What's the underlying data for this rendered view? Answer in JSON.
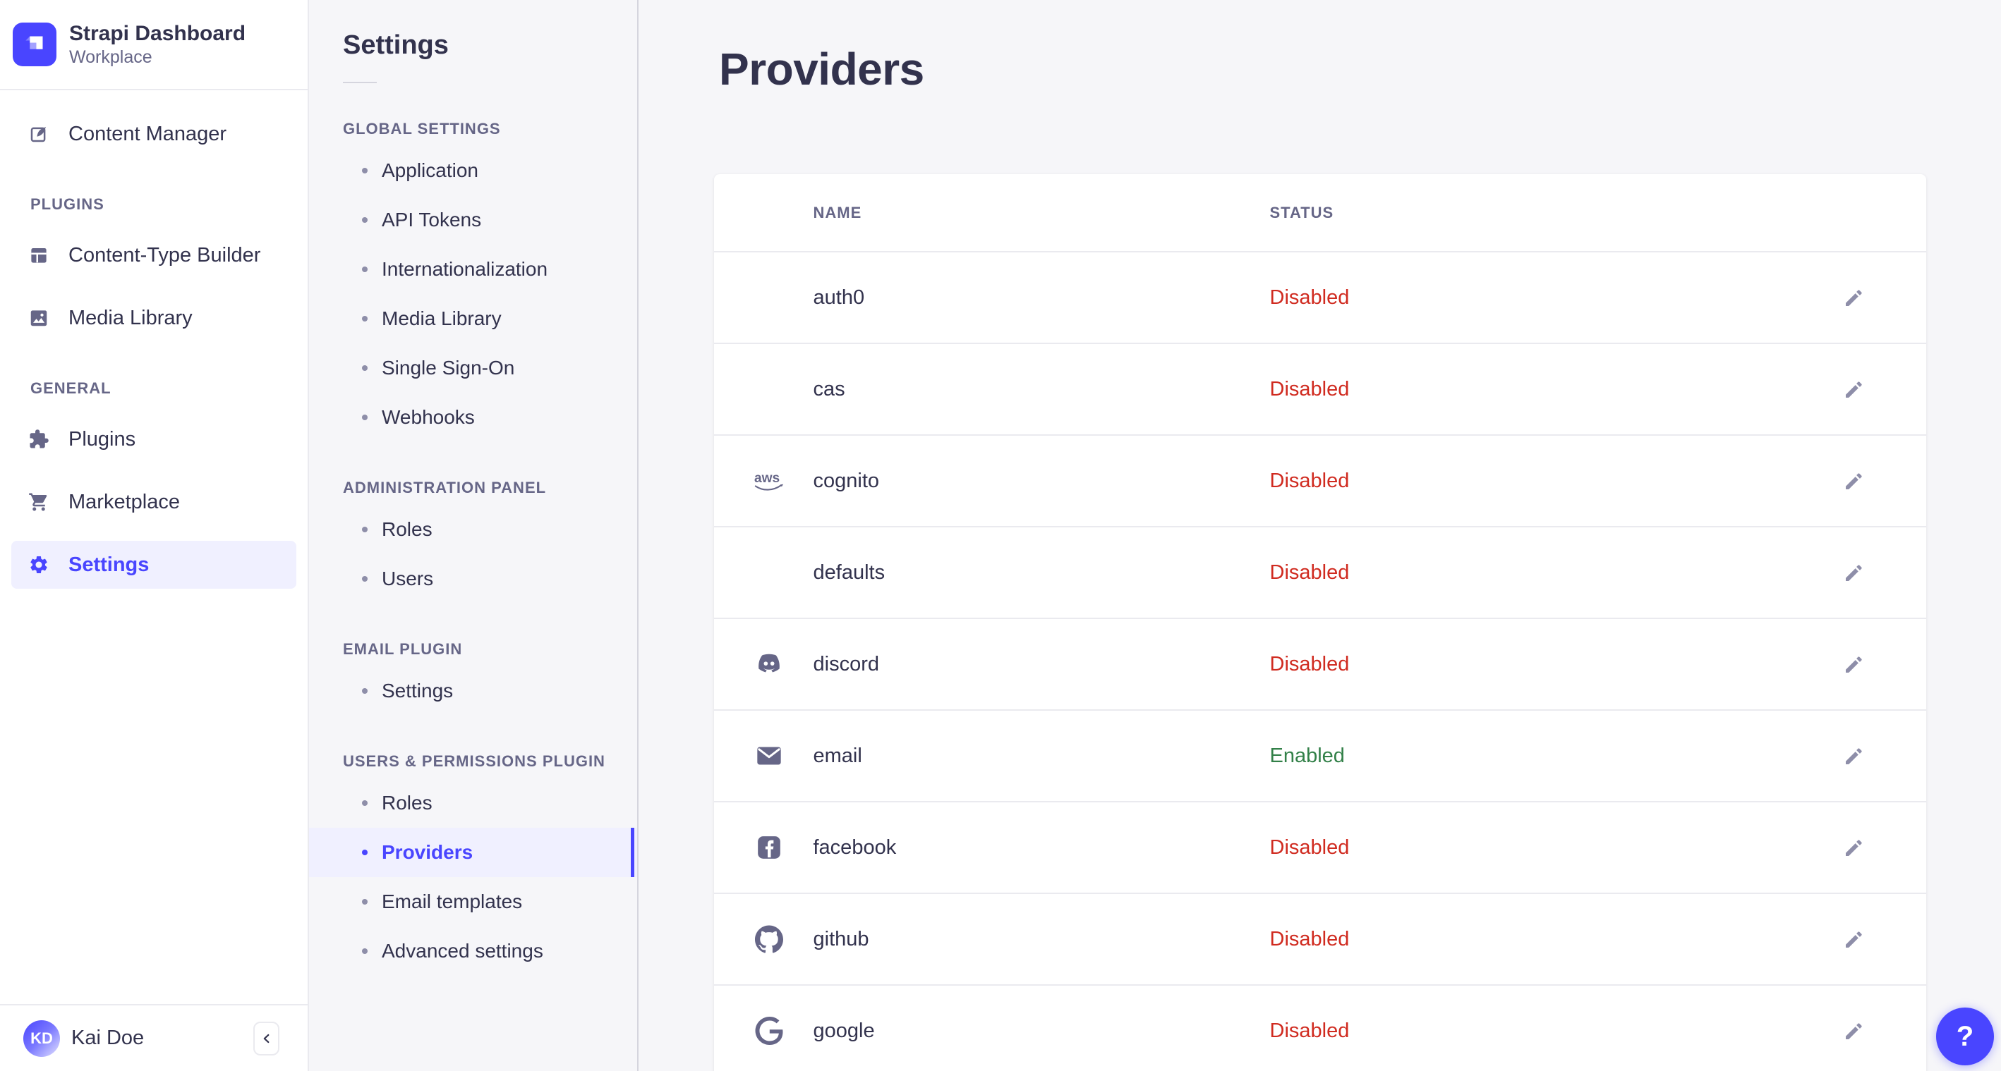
{
  "brand": {
    "title": "Strapi Dashboard",
    "subtitle": "Workplace"
  },
  "sidebar": {
    "sections": [
      {
        "label": null,
        "items": [
          {
            "label": "Content Manager",
            "icon": "content-manager"
          }
        ]
      },
      {
        "label": "PLUGINS",
        "items": [
          {
            "label": "Content-Type Builder",
            "icon": "content-type-builder"
          },
          {
            "label": "Media Library",
            "icon": "media-library"
          }
        ]
      },
      {
        "label": "GENERAL",
        "items": [
          {
            "label": "Plugins",
            "icon": "plugins"
          },
          {
            "label": "Marketplace",
            "icon": "marketplace"
          },
          {
            "label": "Settings",
            "icon": "settings",
            "active": true
          }
        ]
      }
    ],
    "user": {
      "name": "Kai Doe",
      "initials": "KD"
    },
    "collapse_icon": "chevron-left"
  },
  "settings_nav": {
    "title": "Settings",
    "sections": [
      {
        "label": "GLOBAL SETTINGS",
        "items": [
          {
            "label": "Application"
          },
          {
            "label": "API Tokens"
          },
          {
            "label": "Internationalization"
          },
          {
            "label": "Media Library"
          },
          {
            "label": "Single Sign-On"
          },
          {
            "label": "Webhooks"
          }
        ]
      },
      {
        "label": "ADMINISTRATION PANEL",
        "items": [
          {
            "label": "Roles"
          },
          {
            "label": "Users"
          }
        ]
      },
      {
        "label": "EMAIL PLUGIN",
        "items": [
          {
            "label": "Settings"
          }
        ]
      },
      {
        "label": "USERS & PERMISSIONS PLUGIN",
        "items": [
          {
            "label": "Roles"
          },
          {
            "label": "Providers",
            "active": true
          },
          {
            "label": "Email templates"
          },
          {
            "label": "Advanced settings"
          }
        ]
      }
    ]
  },
  "main": {
    "title": "Providers",
    "table": {
      "columns": [
        "NAME",
        "STATUS"
      ],
      "rows": [
        {
          "name": "auth0",
          "icon": null,
          "status": "Disabled"
        },
        {
          "name": "cas",
          "icon": null,
          "status": "Disabled"
        },
        {
          "name": "cognito",
          "icon": "aws",
          "status": "Disabled"
        },
        {
          "name": "defaults",
          "icon": null,
          "status": "Disabled"
        },
        {
          "name": "discord",
          "icon": "discord",
          "status": "Disabled"
        },
        {
          "name": "email",
          "icon": "envelope",
          "status": "Enabled"
        },
        {
          "name": "facebook",
          "icon": "facebook",
          "status": "Disabled"
        },
        {
          "name": "github",
          "icon": "github",
          "status": "Disabled"
        },
        {
          "name": "google",
          "icon": "google",
          "status": "Disabled"
        }
      ]
    }
  },
  "help": {
    "label": "?"
  },
  "colors": {
    "primary": "#4945ff",
    "primary_light": "#f0f0ff",
    "text": "#32324d",
    "muted": "#666687",
    "border": "#eaeaef",
    "danger": "#d02b20",
    "success": "#328048"
  }
}
